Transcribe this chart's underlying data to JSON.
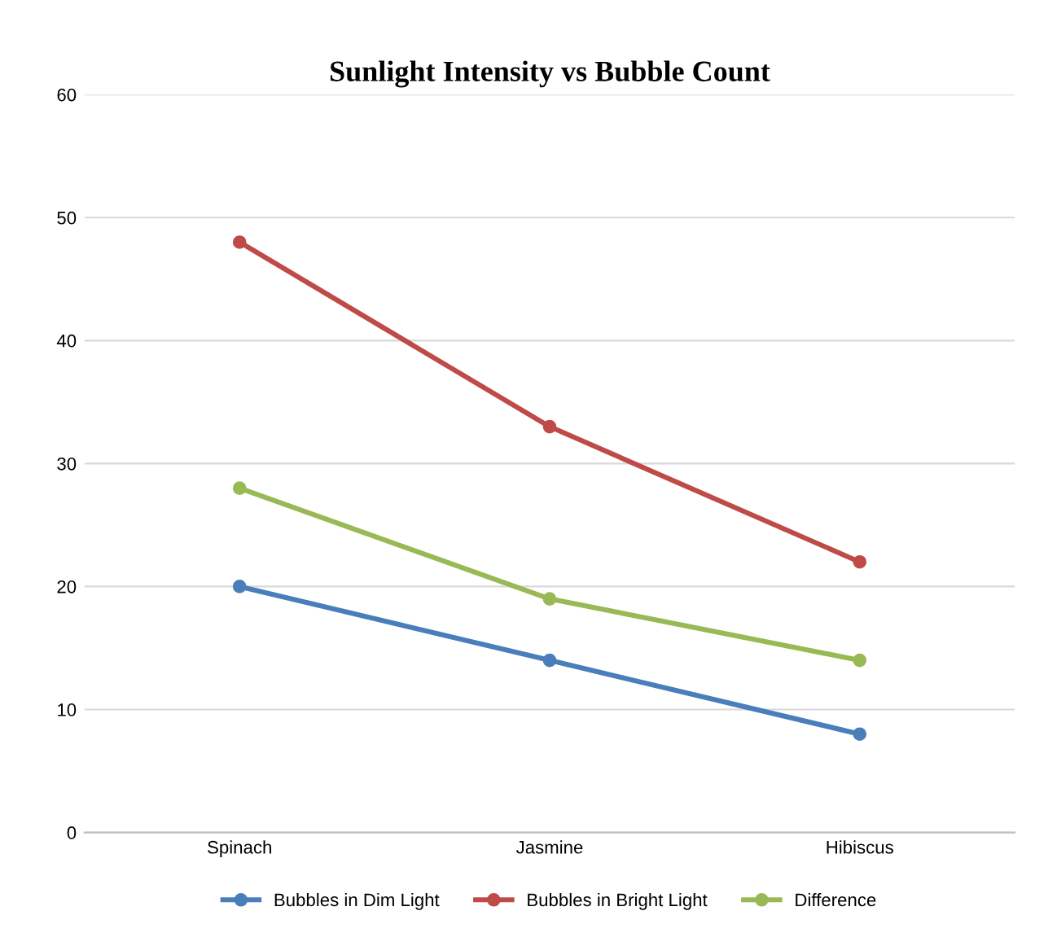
{
  "chart_data": {
    "type": "line",
    "title": "Sunlight Intensity vs Bubble Count",
    "categories": [
      "Spinach",
      "Jasmine",
      "Hibiscus"
    ],
    "series": [
      {
        "name": "Bubbles in Dim Light",
        "color": "#4a7ebb",
        "values": [
          20,
          14,
          8
        ]
      },
      {
        "name": "Bubbles in Bright Light",
        "color": "#be4b48",
        "values": [
          48,
          33,
          22
        ]
      },
      {
        "name": "Difference",
        "color": "#98b954",
        "values": [
          28,
          19,
          14
        ]
      }
    ],
    "ylim": [
      0,
      60
    ],
    "yticks": [
      0,
      10,
      20,
      30,
      40,
      50,
      60
    ],
    "grid": "y",
    "legend": "bottom",
    "marker": "circle",
    "line_style": "solid"
  }
}
